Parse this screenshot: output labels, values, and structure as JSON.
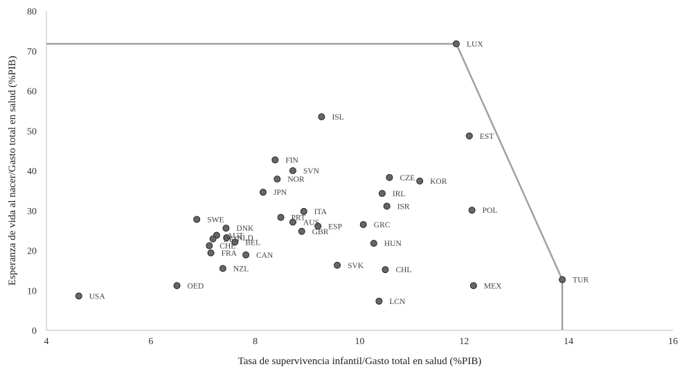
{
  "chart_data": {
    "type": "scatter",
    "title": "",
    "xlabel": "Tasa de supervivencia infantil/Gasto total en salud (%PIB)",
    "ylabel": "Esperanza de vida al nacer/Gasto total en salud (%PIB)",
    "xlim": [
      4,
      16
    ],
    "ylim": [
      0,
      80
    ],
    "xticks": [
      4,
      6,
      8,
      10,
      12,
      14,
      16
    ],
    "yticks": [
      0,
      10,
      20,
      30,
      40,
      50,
      60,
      70,
      80
    ],
    "grid": false,
    "legend": "none",
    "marker_color": "#666666",
    "frontier_color": "#a0a0a0",
    "points": [
      {
        "label": "LUX",
        "x": 11.85,
        "y": 71.8
      },
      {
        "label": "ISL",
        "x": 9.27,
        "y": 53.5
      },
      {
        "label": "EST",
        "x": 12.1,
        "y": 48.7
      },
      {
        "label": "FIN",
        "x": 8.38,
        "y": 42.7
      },
      {
        "label": "SVN",
        "x": 8.72,
        "y": 40.0
      },
      {
        "label": "NOR",
        "x": 8.42,
        "y": 37.9
      },
      {
        "label": "CZE",
        "x": 10.57,
        "y": 38.3
      },
      {
        "label": "KOR",
        "x": 11.15,
        "y": 37.4
      },
      {
        "label": "JPN",
        "x": 8.15,
        "y": 34.6
      },
      {
        "label": "IRL",
        "x": 10.43,
        "y": 34.3
      },
      {
        "label": "ISR",
        "x": 10.52,
        "y": 31.1
      },
      {
        "label": "POL",
        "x": 12.15,
        "y": 30.1
      },
      {
        "label": "ITA",
        "x": 8.93,
        "y": 29.8
      },
      {
        "label": "PRT",
        "x": 8.49,
        "y": 28.3
      },
      {
        "label": "SWE",
        "x": 6.88,
        "y": 27.8
      },
      {
        "label": "AUS",
        "x": 8.72,
        "y": 27.1
      },
      {
        "label": "ESP",
        "x": 9.2,
        "y": 26.1
      },
      {
        "label": "GRC",
        "x": 10.07,
        "y": 26.5
      },
      {
        "label": "DNK",
        "x": 7.44,
        "y": 25.6
      },
      {
        "label": "GBR",
        "x": 8.89,
        "y": 24.8
      },
      {
        "label": "AUT",
        "x": 7.26,
        "y": 23.8
      },
      {
        "label": "NLD",
        "x": 7.45,
        "y": 23.2
      },
      {
        "label": "DEU",
        "x": 7.19,
        "y": 22.9
      },
      {
        "label": "BEL",
        "x": 7.61,
        "y": 22.1
      },
      {
        "label": "HUN",
        "x": 10.27,
        "y": 21.8
      },
      {
        "label": "CHE",
        "x": 7.12,
        "y": 21.2
      },
      {
        "label": "FRA",
        "x": 7.15,
        "y": 19.4
      },
      {
        "label": "CAN",
        "x": 7.82,
        "y": 18.9
      },
      {
        "label": "SVK",
        "x": 9.57,
        "y": 16.3
      },
      {
        "label": "CHL",
        "x": 10.49,
        "y": 15.2
      },
      {
        "label": "NZL",
        "x": 7.38,
        "y": 15.5
      },
      {
        "label": "TUR",
        "x": 13.88,
        "y": 12.7
      },
      {
        "label": "OED",
        "x": 6.5,
        "y": 11.2
      },
      {
        "label": "MEX",
        "x": 12.18,
        "y": 11.2
      },
      {
        "label": "USA",
        "x": 4.62,
        "y": 8.6
      },
      {
        "label": "LCN",
        "x": 10.37,
        "y": 7.3
      }
    ],
    "frontier": [
      {
        "x": 4,
        "y": 71.8
      },
      {
        "x": 11.85,
        "y": 71.8
      },
      {
        "x": 13.88,
        "y": 12.7
      },
      {
        "x": 13.88,
        "y": 0
      }
    ]
  }
}
